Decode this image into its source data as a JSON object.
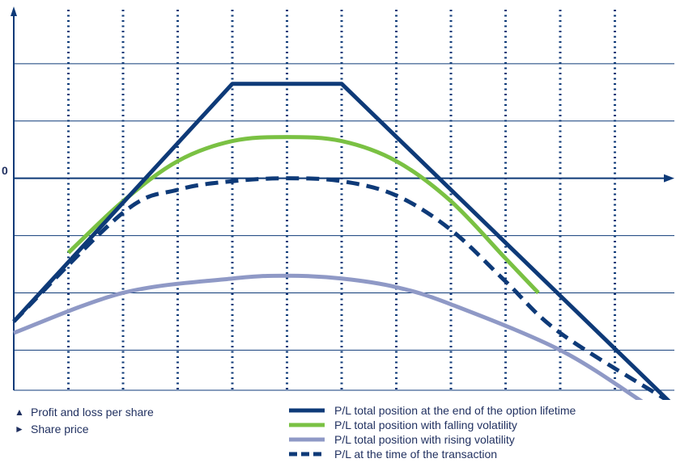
{
  "chart_data": {
    "type": "line",
    "y_zero_label": "0",
    "xlim": [
      0,
      12
    ],
    "ylim": [
      -3.7,
      3
    ],
    "grid": true,
    "legend_axes": [
      {
        "symbol": "▲",
        "label": "Profit and loss per share"
      },
      {
        "symbol": "►",
        "label": "Share price"
      }
    ],
    "series": [
      {
        "name": "P/L total position at the end of the option lifetime",
        "color": "#0e3a78",
        "style": "solid",
        "x": [
          0,
          4,
          6,
          12
        ],
        "y": [
          -2.5,
          1.65,
          1.65,
          -3.9
        ]
      },
      {
        "name": "P/L total position with falling volatility",
        "color": "#7ac143",
        "style": "solid",
        "x": [
          1,
          2,
          3,
          4,
          5,
          6,
          7,
          8,
          9,
          9.6
        ],
        "y": [
          -1.3,
          -0.4,
          0.3,
          0.65,
          0.72,
          0.65,
          0.3,
          -0.4,
          -1.4,
          -2.0
        ]
      },
      {
        "name": "P/L total position with rising volatility",
        "color": "#8f99c6",
        "style": "solid",
        "x": [
          0,
          2,
          4,
          5,
          6,
          7,
          8,
          10,
          11.5
        ],
        "y": [
          -2.7,
          -2.0,
          -1.75,
          -1.7,
          -1.75,
          -1.9,
          -2.2,
          -3.0,
          -3.9
        ]
      },
      {
        "name": "P/L at the time of the transaction",
        "color": "#0e3a78",
        "style": "dashed",
        "x": [
          0,
          2,
          3,
          4,
          5,
          6,
          7,
          8,
          9,
          10,
          12
        ],
        "y": [
          -2.5,
          -0.6,
          -0.2,
          -0.05,
          0,
          -0.05,
          -0.3,
          -0.9,
          -1.8,
          -2.7,
          -3.9
        ]
      }
    ]
  }
}
